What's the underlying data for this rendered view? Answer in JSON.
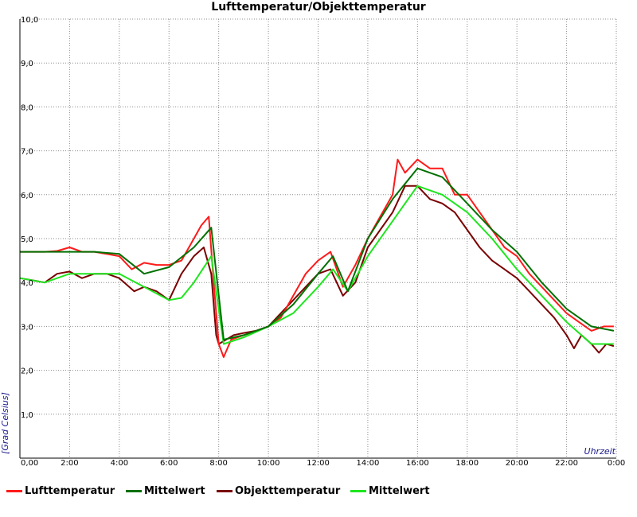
{
  "chart_data": {
    "type": "line",
    "title": "Lufttemperatur/Objekttemperatur",
    "xlabel": "Uhrzeit",
    "ylabel": "[Grad Celsius]",
    "xlim": [
      0,
      24
    ],
    "ylim": [
      0,
      10
    ],
    "x_tick_labels": [
      "0,00",
      "2:00",
      "4:00",
      "6:00",
      "8:00",
      "10:00",
      "12:00",
      "14:00",
      "16:00",
      "18:00",
      "20:00",
      "22:00",
      "0:00"
    ],
    "y_tick_labels": [
      "1,0",
      "2,0",
      "3,0",
      "4,0",
      "5,0",
      "6,0",
      "7,0",
      "8,0",
      "9,0",
      "10,0"
    ],
    "grid": true,
    "legend_position": "bottom",
    "series": [
      {
        "name": "Lufttemperatur",
        "color": "#ff1a1a",
        "x": [
          0,
          0.5,
          1,
          1.5,
          2,
          2.5,
          3,
          3.5,
          4,
          4.5,
          5,
          5.5,
          6,
          6.5,
          7,
          7.3,
          7.6,
          7.8,
          8,
          8.2,
          8.5,
          9,
          9.5,
          10,
          10.5,
          11,
          11.5,
          12,
          12.5,
          13,
          13.5,
          14,
          14.5,
          15,
          15.2,
          15.5,
          16,
          16.5,
          17,
          17.5,
          18,
          18.5,
          19,
          19.5,
          20,
          20.5,
          21,
          21.5,
          22,
          22.5,
          23,
          23.5,
          23.9
        ],
        "y": [
          4.7,
          4.7,
          4.7,
          4.72,
          4.8,
          4.7,
          4.7,
          4.65,
          4.6,
          4.3,
          4.45,
          4.4,
          4.4,
          4.5,
          5.0,
          5.3,
          5.5,
          4.0,
          2.6,
          2.3,
          2.7,
          2.8,
          2.9,
          3.0,
          3.2,
          3.7,
          4.2,
          4.5,
          4.7,
          3.9,
          4.4,
          5.0,
          5.5,
          6.0,
          6.8,
          6.5,
          6.8,
          6.6,
          6.6,
          6.0,
          6.0,
          5.6,
          5.2,
          4.8,
          4.6,
          4.2,
          3.9,
          3.6,
          3.3,
          3.1,
          2.9,
          3.0,
          3.0
        ]
      },
      {
        "name": "Mittelwert",
        "color": "#007000",
        "x": [
          0,
          1,
          2,
          3,
          4,
          5,
          6,
          7,
          7.7,
          8.2,
          9,
          10,
          11,
          12,
          12.6,
          13.2,
          14,
          15,
          16,
          17,
          18,
          19,
          20,
          21,
          22,
          23,
          23.9
        ],
        "y": [
          4.7,
          4.7,
          4.7,
          4.7,
          4.65,
          4.2,
          4.35,
          4.8,
          5.25,
          2.7,
          2.8,
          3.0,
          3.5,
          4.2,
          4.6,
          3.8,
          5.0,
          5.9,
          6.6,
          6.4,
          5.8,
          5.2,
          4.7,
          4.0,
          3.4,
          3.0,
          2.9
        ]
      },
      {
        "name": "Objekttemperatur",
        "color": "#7a0000",
        "x": [
          0,
          0.5,
          1,
          1.5,
          2,
          2.5,
          3,
          3.5,
          4,
          4.3,
          4.6,
          5,
          5.5,
          6,
          6.5,
          7,
          7.4,
          7.7,
          7.9,
          8,
          8.3,
          8.6,
          9,
          9.5,
          10,
          10.5,
          11,
          11.5,
          12,
          12.5,
          13,
          13.5,
          14,
          14.5,
          15,
          15.5,
          16,
          16.5,
          17,
          17.5,
          18,
          18.5,
          19,
          19.5,
          20,
          20.5,
          21,
          21.5,
          22,
          22.3,
          22.6,
          23,
          23.3,
          23.6,
          23.9
        ],
        "y": [
          4.1,
          4.05,
          4.0,
          4.2,
          4.25,
          4.1,
          4.2,
          4.2,
          4.1,
          3.95,
          3.8,
          3.9,
          3.8,
          3.6,
          4.2,
          4.6,
          4.8,
          4.2,
          2.8,
          2.6,
          2.7,
          2.8,
          2.85,
          2.9,
          3.0,
          3.3,
          3.6,
          3.9,
          4.2,
          4.3,
          3.7,
          4.0,
          4.8,
          5.2,
          5.6,
          6.2,
          6.2,
          5.9,
          5.8,
          5.6,
          5.2,
          4.8,
          4.5,
          4.3,
          4.1,
          3.8,
          3.5,
          3.2,
          2.8,
          2.5,
          2.8,
          2.6,
          2.4,
          2.6,
          2.55
        ]
      },
      {
        "name": "Mittelwert",
        "color": "#1ee61e",
        "x": [
          0,
          1,
          2,
          3,
          4,
          5,
          6,
          6.5,
          7,
          7.7,
          8.2,
          9,
          10,
          11,
          12,
          12.6,
          13.2,
          14,
          15,
          16,
          17,
          18,
          19,
          20,
          21,
          22,
          23,
          23.9
        ],
        "y": [
          4.1,
          4.0,
          4.2,
          4.2,
          4.2,
          3.9,
          3.6,
          3.65,
          4.0,
          4.6,
          2.6,
          2.75,
          3.0,
          3.3,
          3.9,
          4.3,
          3.8,
          4.6,
          5.4,
          6.2,
          6.0,
          5.6,
          5.0,
          4.3,
          3.7,
          3.1,
          2.6,
          2.6
        ]
      }
    ]
  }
}
